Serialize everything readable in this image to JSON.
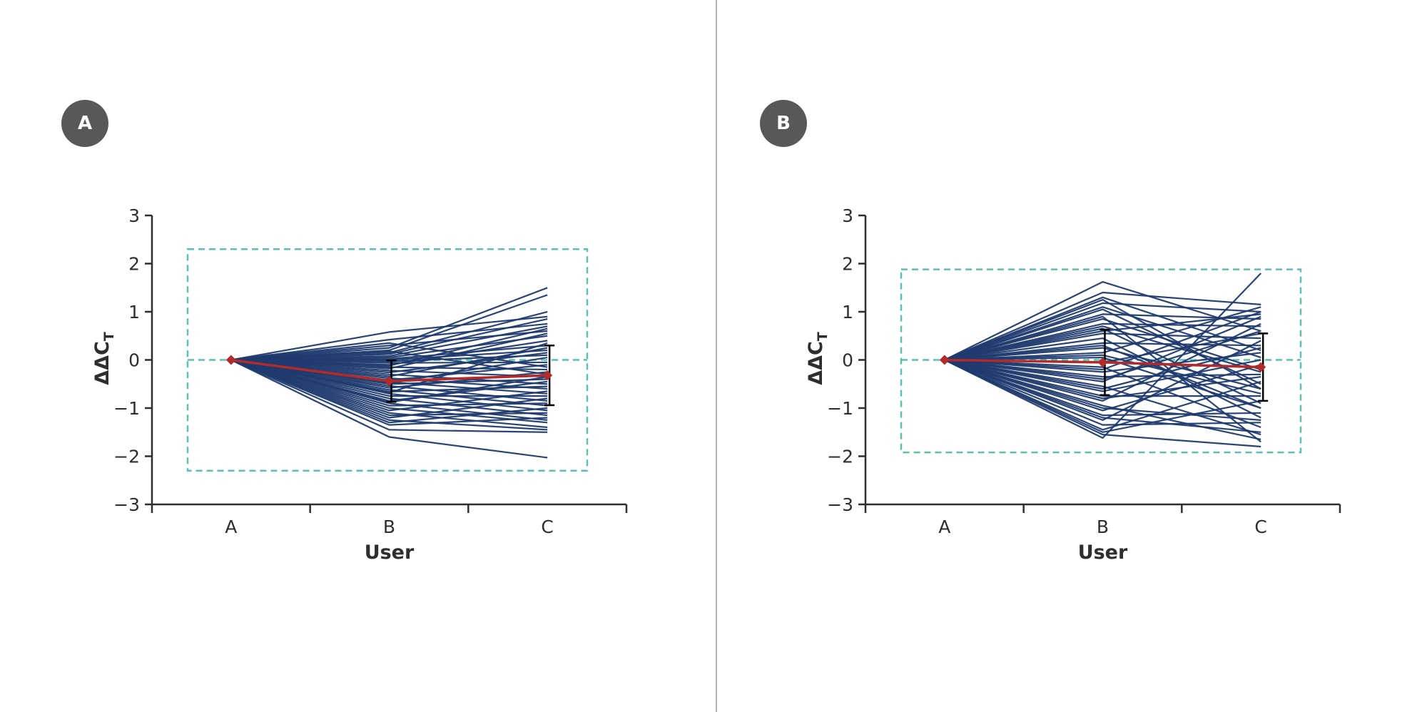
{
  "chart_data": [
    {
      "panel_label": "A",
      "type": "line",
      "xlabel": "User",
      "ylabel_main": "ΔΔC",
      "ylabel_sub": "T",
      "categories": [
        "A",
        "B",
        "C"
      ],
      "ylim": [
        -3,
        3
      ],
      "yticks": [
        3,
        2,
        1,
        0,
        -1,
        -2,
        -3
      ],
      "ytick_labels": [
        "3",
        "2",
        "1",
        "0",
        "−1",
        "−2",
        "−3"
      ],
      "reference_line_y": 0,
      "threshold_box": {
        "ymin": -2.3,
        "ymax": 2.3
      },
      "mean_series": {
        "values": [
          0,
          -0.44,
          -0.32
        ],
        "error": [
          0,
          0.43,
          0.62
        ]
      },
      "series_color": "#1f3a6e",
      "mean_color": "#b22a2a",
      "box_color": "#5cbfb4",
      "series": [
        {
          "values": [
            0,
            0.58,
            0.9
          ]
        },
        {
          "values": [
            0,
            0.42,
            0.75
          ]
        },
        {
          "values": [
            0,
            0.3,
            0.6
          ]
        },
        {
          "values": [
            0,
            0.25,
            1.5
          ]
        },
        {
          "values": [
            0,
            0.2,
            1.35
          ]
        },
        {
          "values": [
            0,
            0.15,
            1.0
          ]
        },
        {
          "values": [
            0,
            0.12,
            0.85
          ]
        },
        {
          "values": [
            0,
            0.08,
            0.7
          ]
        },
        {
          "values": [
            0,
            0.05,
            0.5
          ]
        },
        {
          "values": [
            0,
            0.02,
            0.3
          ]
        },
        {
          "values": [
            0,
            0.0,
            0.2
          ]
        },
        {
          "values": [
            0,
            -0.03,
            0.1
          ]
        },
        {
          "values": [
            0,
            -0.06,
            -0.05
          ]
        },
        {
          "values": [
            0,
            -0.1,
            0.4
          ]
        },
        {
          "values": [
            0,
            -0.15,
            -0.2
          ]
        },
        {
          "values": [
            0,
            -0.18,
            0.55
          ]
        },
        {
          "values": [
            0,
            -0.22,
            -0.35
          ]
        },
        {
          "values": [
            0,
            -0.26,
            0.15
          ]
        },
        {
          "values": [
            0,
            -0.3,
            -0.5
          ]
        },
        {
          "values": [
            0,
            -0.34,
            0.25
          ]
        },
        {
          "values": [
            0,
            -0.38,
            -0.6
          ]
        },
        {
          "values": [
            0,
            -0.42,
            -0.1
          ]
        },
        {
          "values": [
            0,
            -0.46,
            -0.7
          ]
        },
        {
          "values": [
            0,
            -0.5,
            -0.4
          ]
        },
        {
          "values": [
            0,
            -0.54,
            -0.85
          ]
        },
        {
          "values": [
            0,
            -0.58,
            -0.25
          ]
        },
        {
          "values": [
            0,
            -0.62,
            -0.95
          ]
        },
        {
          "values": [
            0,
            -0.66,
            -0.55
          ]
        },
        {
          "values": [
            0,
            -0.7,
            -1.05
          ]
        },
        {
          "values": [
            0,
            -0.75,
            -0.75
          ]
        },
        {
          "values": [
            0,
            -0.8,
            -1.15
          ]
        },
        {
          "values": [
            0,
            -0.85,
            -0.45
          ]
        },
        {
          "values": [
            0,
            -0.9,
            -1.25
          ]
        },
        {
          "values": [
            0,
            -0.95,
            -0.9
          ]
        },
        {
          "values": [
            0,
            -1.0,
            -1.3
          ]
        },
        {
          "values": [
            0,
            -1.05,
            -0.65
          ]
        },
        {
          "values": [
            0,
            -1.1,
            -1.4
          ]
        },
        {
          "values": [
            0,
            -1.15,
            -1.1
          ]
        },
        {
          "values": [
            0,
            -1.2,
            -0.8
          ]
        },
        {
          "values": [
            0,
            -1.25,
            -1.45
          ]
        },
        {
          "values": [
            0,
            -1.3,
            -1.0
          ]
        },
        {
          "values": [
            0,
            -1.35,
            -1.2
          ]
        },
        {
          "values": [
            0,
            -1.45,
            -1.5
          ]
        },
        {
          "values": [
            0,
            -1.6,
            -2.03
          ]
        },
        {
          "values": [
            0,
            0.35,
            -0.15
          ]
        },
        {
          "values": [
            0,
            0.18,
            -0.3
          ]
        },
        {
          "values": [
            0,
            -0.12,
            0.65
          ]
        },
        {
          "values": [
            0,
            -0.48,
            0.05
          ]
        },
        {
          "values": [
            0,
            -0.68,
            0.35
          ]
        },
        {
          "values": [
            0,
            -0.88,
            -0.35
          ]
        }
      ]
    },
    {
      "panel_label": "B",
      "type": "line",
      "xlabel": "User",
      "ylabel_main": "ΔΔC",
      "ylabel_sub": "T",
      "categories": [
        "A",
        "B",
        "C"
      ],
      "ylim": [
        -3,
        3
      ],
      "yticks": [
        3,
        2,
        1,
        0,
        -1,
        -2,
        -3
      ],
      "ytick_labels": [
        "3",
        "2",
        "1",
        "0",
        "−1",
        "−2",
        "−3"
      ],
      "reference_line_y": 0,
      "threshold_box": {
        "ymin": -1.92,
        "ymax": 1.88
      },
      "mean_series": {
        "values": [
          0,
          -0.05,
          -0.15
        ],
        "error": [
          0,
          0.68,
          0.7
        ]
      },
      "series_color": "#1f3a6e",
      "mean_color": "#b22a2a",
      "box_color": "#5cbfb4",
      "series": [
        {
          "values": [
            0,
            1.62,
            0.6
          ]
        },
        {
          "values": [
            0,
            1.4,
            1.15
          ]
        },
        {
          "values": [
            0,
            1.3,
            0.2
          ]
        },
        {
          "values": [
            0,
            1.18,
            1.0
          ]
        },
        {
          "values": [
            0,
            1.05,
            -0.5
          ]
        },
        {
          "values": [
            0,
            0.95,
            0.85
          ]
        },
        {
          "values": [
            0,
            0.85,
            -0.2
          ]
        },
        {
          "values": [
            0,
            0.75,
            0.7
          ]
        },
        {
          "values": [
            0,
            0.65,
            -0.9
          ]
        },
        {
          "values": [
            0,
            0.55,
            0.45
          ]
        },
        {
          "values": [
            0,
            0.45,
            -1.2
          ]
        },
        {
          "values": [
            0,
            0.35,
            0.3
          ]
        },
        {
          "values": [
            0,
            0.25,
            -0.6
          ]
        },
        {
          "values": [
            0,
            0.15,
            1.1
          ]
        },
        {
          "values": [
            0,
            0.05,
            -1.0
          ]
        },
        {
          "values": [
            0,
            -0.05,
            0.55
          ]
        },
        {
          "values": [
            0,
            -0.15,
            -1.4
          ]
        },
        {
          "values": [
            0,
            -0.25,
            0.15
          ]
        },
        {
          "values": [
            0,
            -0.35,
            -0.3
          ]
        },
        {
          "values": [
            0,
            -0.45,
            0.9
          ]
        },
        {
          "values": [
            0,
            -0.55,
            -1.55
          ]
        },
        {
          "values": [
            0,
            -0.65,
            0.0
          ]
        },
        {
          "values": [
            0,
            -0.75,
            -0.75
          ]
        },
        {
          "values": [
            0,
            -0.85,
            0.75
          ]
        },
        {
          "values": [
            0,
            -0.95,
            -1.65
          ]
        },
        {
          "values": [
            0,
            -1.05,
            -0.1
          ]
        },
        {
          "values": [
            0,
            -1.15,
            -1.1
          ]
        },
        {
          "values": [
            0,
            -1.25,
            0.4
          ]
        },
        {
          "values": [
            0,
            -1.35,
            -1.3
          ]
        },
        {
          "values": [
            0,
            -1.45,
            -0.45
          ]
        },
        {
          "values": [
            0,
            -1.55,
            -1.8
          ]
        },
        {
          "values": [
            0,
            -1.62,
            1.8
          ]
        },
        {
          "values": [
            0,
            -1.5,
            -0.85
          ]
        },
        {
          "values": [
            0,
            -1.2,
            -1.5
          ]
        },
        {
          "values": [
            0,
            0.9,
            -1.7
          ]
        },
        {
          "values": [
            0,
            0.6,
            0.95
          ]
        },
        {
          "values": [
            0,
            0.1,
            -0.7
          ]
        },
        {
          "values": [
            0,
            -0.4,
            0.6
          ]
        },
        {
          "values": [
            0,
            -0.8,
            -0.35
          ]
        },
        {
          "values": [
            0,
            1.1,
            0.05
          ]
        },
        {
          "values": [
            0,
            0.3,
            -1.0
          ]
        },
        {
          "values": [
            0,
            -0.2,
            1.0
          ]
        },
        {
          "values": [
            0,
            -1.0,
            -1.25
          ]
        },
        {
          "values": [
            0,
            0.7,
            -0.25
          ]
        },
        {
          "values": [
            0,
            -0.6,
            0.25
          ]
        },
        {
          "values": [
            0,
            1.25,
            -0.6
          ]
        }
      ]
    }
  ]
}
